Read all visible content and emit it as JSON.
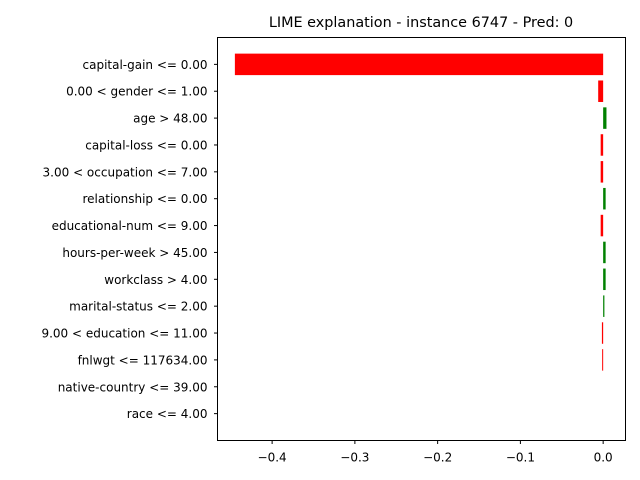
{
  "chart_data": {
    "type": "bar",
    "orientation": "horizontal",
    "title": "LIME explanation - instance 6747 - Pred: 0",
    "xlabel": "",
    "ylabel": "",
    "xlim": [
      -0.466,
      0.027
    ],
    "xticks": [
      -0.4,
      -0.3,
      -0.2,
      -0.1,
      0.0
    ],
    "xtick_labels": [
      "−0.4",
      "−0.3",
      "−0.2",
      "−0.1",
      "0.0"
    ],
    "grid": false,
    "categories": [
      "capital-gain <= 0.00",
      "0.00 < gender <= 1.00",
      "age > 48.00",
      "capital-loss <= 0.00",
      "3.00 < occupation <= 7.00",
      "relationship <= 0.00",
      "educational-num <= 9.00",
      "hours-per-week > 45.00",
      "workclass > 4.00",
      "marital-status <= 2.00",
      "9.00 < education <= 11.00",
      "fnlwgt <= 117634.00",
      "native-country <= 39.00",
      "race <= 4.00"
    ],
    "values": [
      -0.445,
      -0.006,
      0.004,
      -0.003,
      -0.003,
      0.003,
      -0.003,
      0.003,
      0.003,
      0.0015,
      -0.0015,
      -0.0012,
      0.0,
      0.0
    ],
    "colors": {
      "positive": "#008000",
      "negative": "#ff0000"
    }
  }
}
